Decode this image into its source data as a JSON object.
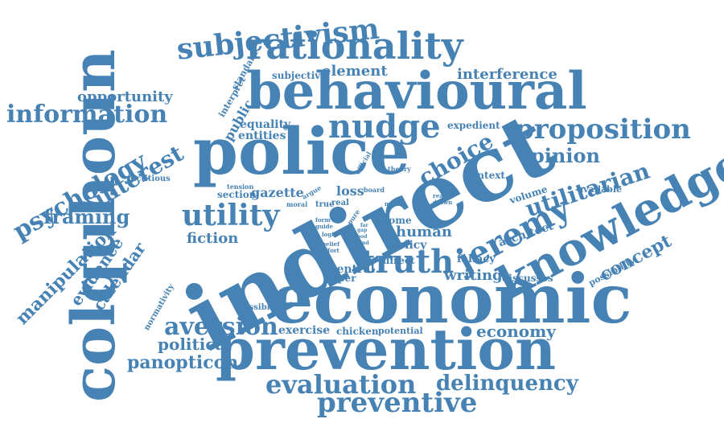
{
  "style": {
    "word_color": "#4682b4",
    "background": "#ffffff"
  },
  "words": [
    "indirect",
    "economic",
    "prevention",
    "police",
    "colquhoun",
    "behavioural",
    "knowledge",
    "rationality",
    "subjectivism",
    "nudge",
    "proposition",
    "truth",
    "jeremy",
    "utility",
    "evaluation",
    "preventive",
    "aversion",
    "information",
    "psychology",
    "interest",
    "choice",
    "utilitarian",
    "opinion",
    "delinquency",
    "concept",
    "framing",
    "manipulation",
    "evidence",
    "calendar",
    "panopticon",
    "political",
    "economy",
    "fiction",
    "writing",
    "human",
    "policy",
    "opportunity",
    "interference",
    "element",
    "subjective",
    "equality",
    "entities",
    "public",
    "interpret",
    "standard",
    "expedient",
    "context",
    "architect",
    "volume",
    "available",
    "fallacy",
    "discusses",
    "possibility",
    "gazette",
    "section",
    "loss",
    "normativity",
    "possible",
    "exercise",
    "chicken",
    "potential",
    "central",
    "paper",
    "direct",
    "come",
    "fictitious",
    "theory",
    "official",
    "board",
    "argue",
    "moral",
    "tension",
    "true",
    "real",
    "model",
    "drawn",
    "reality",
    "form",
    "guide",
    "logic",
    "belief",
    "effort",
    "pure",
    "good",
    "gap",
    "hand",
    "far"
  ]
}
